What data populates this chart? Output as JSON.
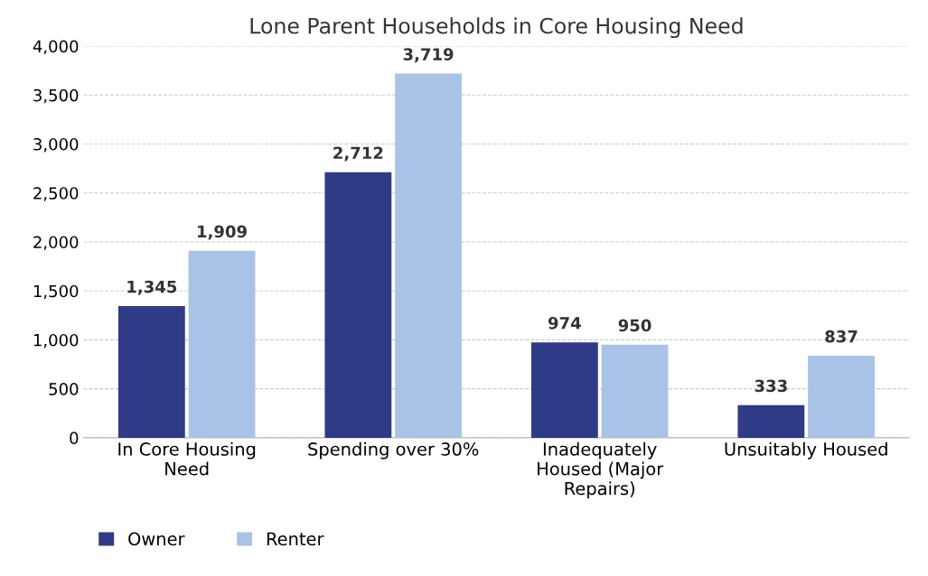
{
  "chart_data": {
    "type": "bar",
    "title": "Lone Parent Households in Core Housing Need",
    "categories": [
      "In Core Housing\nNeed",
      "Spending over 30%",
      "Inadequately\nHoused (Major\nRepairs)",
      "Unsuitably Housed"
    ],
    "series": [
      {
        "name": "Owner",
        "color": "#2f3b86",
        "values": [
          1345,
          2712,
          974,
          333
        ],
        "value_labels": [
          "1,345",
          "2,712",
          "974",
          "333"
        ]
      },
      {
        "name": "Renter",
        "color": "#a9c3e6",
        "values": [
          1909,
          3719,
          950,
          837
        ],
        "value_labels": [
          "1,909",
          "3,719",
          "950",
          "837"
        ]
      }
    ],
    "ylim": [
      0,
      4000
    ],
    "yticks": [
      {
        "value": 0,
        "label": "0"
      },
      {
        "value": 500,
        "label": "500"
      },
      {
        "value": 1000,
        "label": "1,000"
      },
      {
        "value": 1500,
        "label": "1,500"
      },
      {
        "value": 2000,
        "label": "2,000"
      },
      {
        "value": 2500,
        "label": "2,500"
      },
      {
        "value": 3000,
        "label": "3,000"
      },
      {
        "value": 3500,
        "label": "3,500"
      },
      {
        "value": 4000,
        "label": "4,000"
      }
    ],
    "grid": "y",
    "legend": "bottom left"
  }
}
